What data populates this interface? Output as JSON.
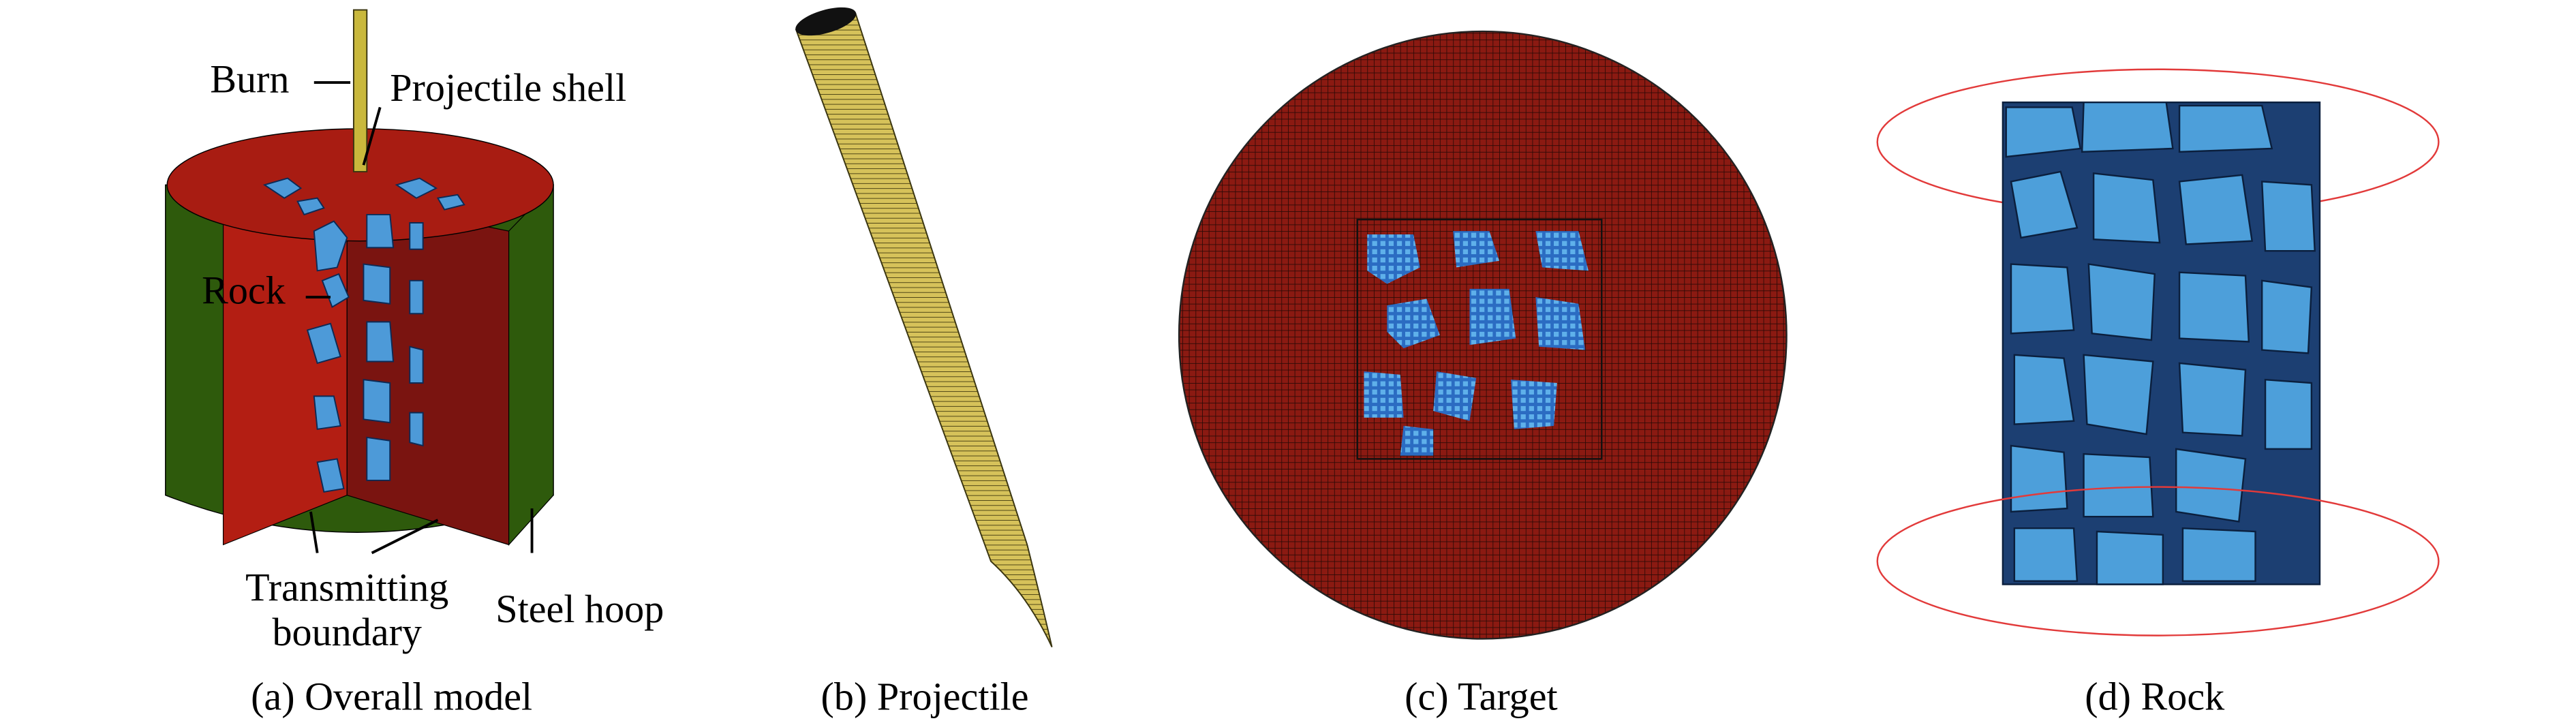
{
  "panels": [
    {
      "caption": "(a) Overall model",
      "annotations": {
        "burn": "Burn",
        "projectile_shell": "Projectile shell",
        "rock": "Rock",
        "transmitting_boundary": [
          "Transmitting",
          "boundary"
        ],
        "steel_hoop": "Steel hoop"
      }
    },
    {
      "caption": "(b) Projectile"
    },
    {
      "caption": "(c) Target"
    },
    {
      "caption": "(d) Rock"
    }
  ]
}
